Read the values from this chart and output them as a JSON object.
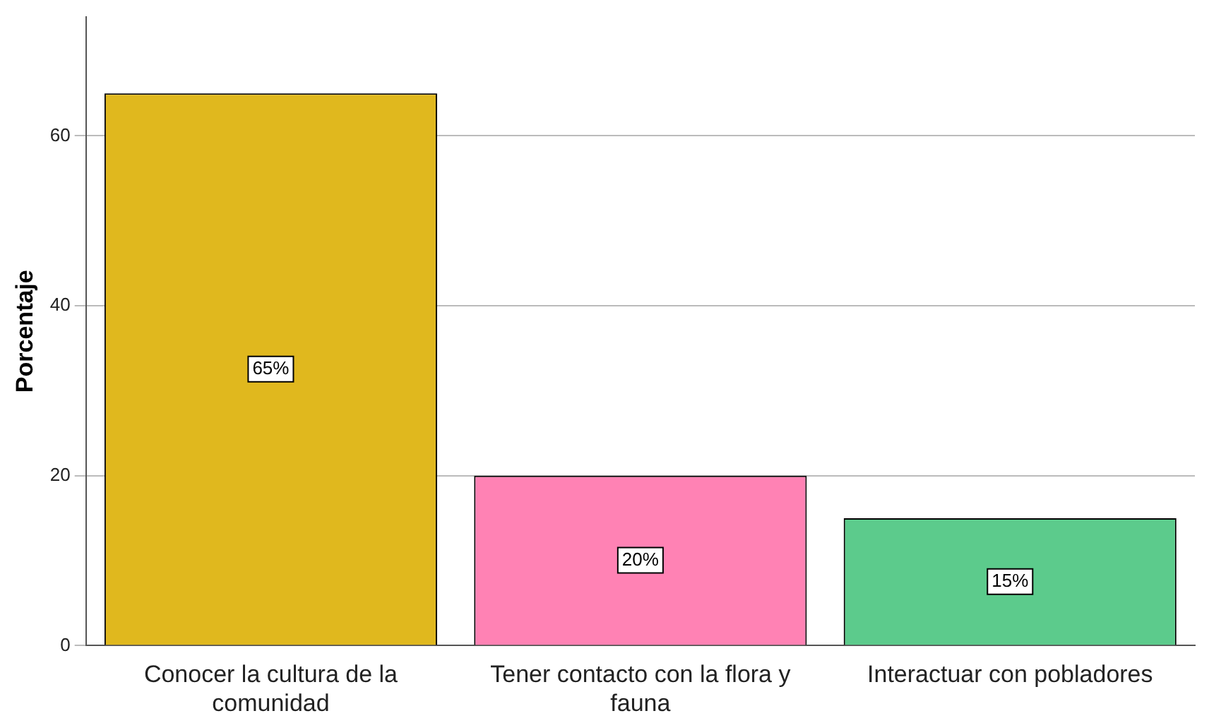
{
  "chart_data": {
    "type": "bar",
    "ylabel": "Porcentaje",
    "categories": [
      "Conocer la cultura de la comunidad",
      "Tener contacto con la flora y fauna",
      "Interactuar con pobladores"
    ],
    "values": [
      65,
      20,
      15
    ],
    "colors": [
      "#e0b81e",
      "#ff82b4",
      "#5ccb8c"
    ],
    "value_labels": [
      "65%",
      "20%",
      "15%"
    ],
    "ylim": [
      0,
      74
    ],
    "yticks": [
      0,
      20,
      40,
      60
    ],
    "grid": "y",
    "legend": false
  }
}
